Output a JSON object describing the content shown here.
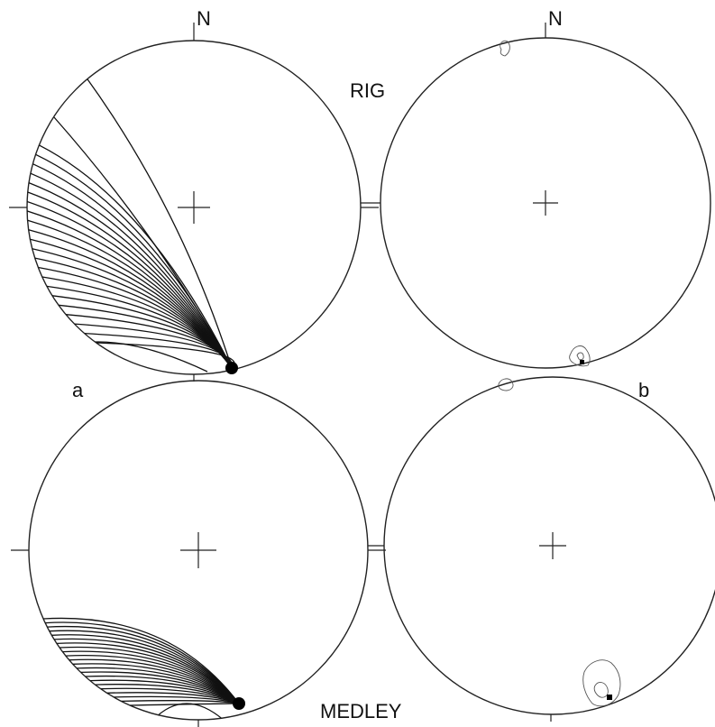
{
  "labels": {
    "north": "N",
    "panel_a": "a",
    "panel_b": "b",
    "site_top": "RIG",
    "site_bottom": "MEDLEY"
  },
  "colors": {
    "ink": "#111111",
    "contour": "#555555",
    "background": "#ffffff"
  },
  "nets": [
    {
      "id": "rig-great-circles",
      "site": "RIG",
      "panel": "a",
      "content": "great-circle-arcs",
      "arc_count": 24
    },
    {
      "id": "rig-pole-contours",
      "site": "RIG",
      "panel": "b",
      "content": "contoured-poles"
    },
    {
      "id": "medley-great-circles",
      "site": "MEDLEY",
      "panel": "a",
      "content": "great-circle-arcs",
      "arc_count": 22
    },
    {
      "id": "medley-pole-contours",
      "site": "MEDLEY",
      "panel": "b",
      "content": "contoured-poles"
    }
  ]
}
